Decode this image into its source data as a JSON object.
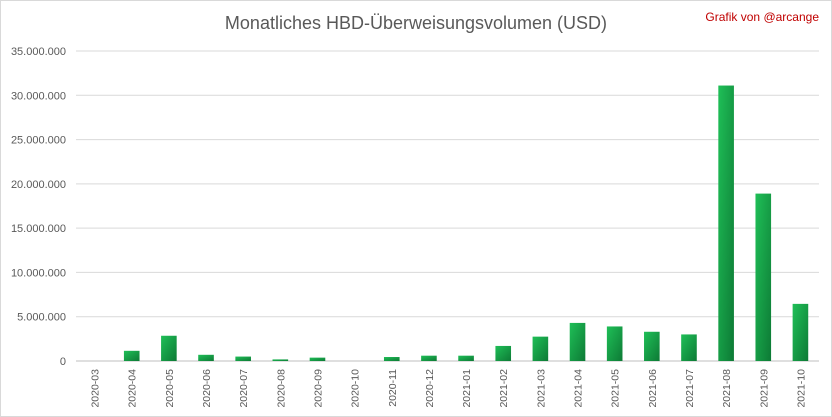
{
  "chart_data": {
    "type": "bar",
    "title": "Monatliches HBD-Überweisungsvolumen (USD)",
    "credit": "Grafik von @arcange",
    "xlabel": "",
    "ylabel": "",
    "ylim": [
      0,
      35000000
    ],
    "yticks": [
      0,
      5000000,
      10000000,
      15000000,
      20000000,
      25000000,
      30000000,
      35000000
    ],
    "ytick_labels": [
      "0",
      "5.000.000",
      "10.000.000",
      "15.000.000",
      "20.000.000",
      "25.000.000",
      "30.000.000",
      "35.000.000"
    ],
    "categories": [
      "2020-03",
      "2020-04",
      "2020-05",
      "2020-06",
      "2020-07",
      "2020-08",
      "2020-09",
      "2020-10",
      "2020-11",
      "2020-12",
      "2021-01",
      "2021-02",
      "2021-03",
      "2021-04",
      "2021-05",
      "2021-06",
      "2021-07",
      "2021-08",
      "2021-09",
      "2021-10"
    ],
    "values": [
      0,
      1150000,
      2850000,
      700000,
      500000,
      180000,
      380000,
      0,
      450000,
      600000,
      600000,
      1700000,
      2750000,
      4300000,
      3900000,
      3300000,
      3000000,
      31100000,
      18900000,
      6450000
    ],
    "grid": true,
    "legend": "none",
    "colors": {
      "bar_light": "#1fbf57",
      "bar_dark": "#0d7a35",
      "grid": "#d9d9d9",
      "axis": "#bfbfbf"
    }
  }
}
